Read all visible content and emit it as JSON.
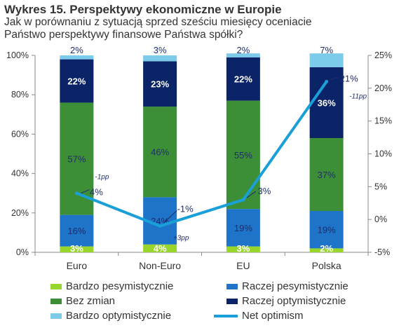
{
  "header": {
    "title": "Wykres 15. Perspektywy ekonomiczne w Europie",
    "subtitle": "Jak w porównaniu z sytuacją sprzed sześciu miesięcy oceniacie Państwo perspektywy finansowe Państwa spółki?"
  },
  "colors": {
    "bardzo_pesymistycznie": "#99d62b",
    "raczej_pesymistycznie": "#1e74c8",
    "bez_zmian": "#3d8f37",
    "raczej_optymistycznie": "#0b2468",
    "bardzo_optymistycznie": "#7dcbea",
    "net_optimism": "#1aa0d8"
  },
  "chart_data": {
    "type": "bar",
    "stacked": true,
    "categories": [
      "Euro",
      "Non-Euro",
      "EU",
      "Polska"
    ],
    "series": [
      {
        "name": "Bardzo pesymistycznie",
        "key": "bardzo_pesymistycznie",
        "values": [
          3,
          4,
          3,
          2
        ],
        "labels": [
          "3%",
          "4%",
          "3%",
          "2%"
        ]
      },
      {
        "name": "Raczej pesymistycznie",
        "key": "raczej_pesymistycznie",
        "values": [
          16,
          24,
          19,
          19
        ],
        "labels": [
          "16%",
          "24%",
          "19%",
          "19%"
        ]
      },
      {
        "name": "Bez zmian",
        "key": "bez_zmian",
        "values": [
          57,
          46,
          55,
          37
        ],
        "labels": [
          "57%",
          "46%",
          "55%",
          "37%"
        ]
      },
      {
        "name": "Raczej optymistycznie",
        "key": "raczej_optymistycznie",
        "values": [
          22,
          23,
          22,
          36
        ],
        "labels": [
          "22%",
          "23%",
          "22%",
          "36%"
        ]
      },
      {
        "name": "Bardzo optymistycznie",
        "key": "bardzo_optymistycznie",
        "values": [
          2,
          3,
          2,
          7
        ],
        "labels": [
          "2%",
          "3%",
          "2%",
          "7%"
        ]
      }
    ],
    "line_series": {
      "name": "Net optimism",
      "key": "net_optimism",
      "axis": "right",
      "values": [
        4,
        -1,
        3,
        21
      ],
      "labels": [
        "4%",
        "-1%",
        "3%",
        "21%"
      ],
      "changes": [
        "-1pp",
        "+3pp",
        "",
        "-11pp"
      ]
    },
    "left_axis": {
      "ylim": [
        0,
        100
      ],
      "ticks": [
        0,
        20,
        40,
        60,
        80,
        100
      ],
      "tick_labels": [
        "0%",
        "20%",
        "40%",
        "60%",
        "80%",
        "100%"
      ]
    },
    "right_axis": {
      "ylim": [
        -5,
        25
      ],
      "ticks": [
        -5,
        0,
        5,
        10,
        15,
        20,
        25
      ],
      "tick_labels": [
        "-5%",
        "0%",
        "5%",
        "10%",
        "15%",
        "20%",
        "25%"
      ]
    },
    "grid": false,
    "legend_position": "bottom"
  },
  "legend": {
    "items": [
      {
        "label": "Bardzo pesymistycznie",
        "key": "bardzo_pesymistycznie"
      },
      {
        "label": "Raczej pesymistycznie",
        "key": "raczej_pesymistycznie"
      },
      {
        "label": "Bez zmian",
        "key": "bez_zmian"
      },
      {
        "label": "Raczej optymistycznie",
        "key": "raczej_optymistycznie"
      },
      {
        "label": "Bardzo optymistycznie",
        "key": "bardzo_optymistycznie"
      },
      {
        "label": "Net optimism",
        "key": "net_optimism"
      }
    ]
  }
}
